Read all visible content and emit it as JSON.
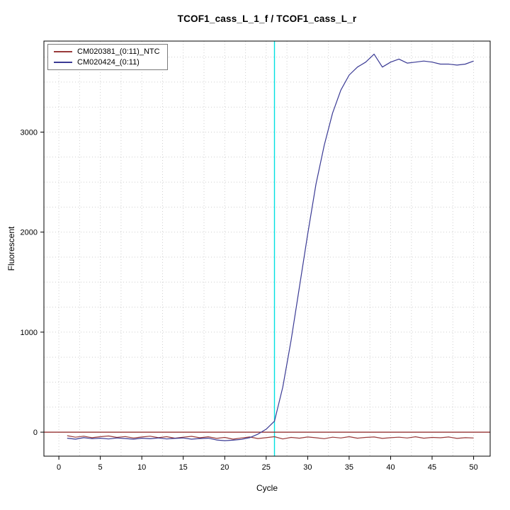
{
  "chart_data": {
    "type": "line",
    "title": "TCOF1_cass_L_1_f / TCOF1_cass_L_r",
    "xlabel": "Cycle",
    "ylabel": "Fluorescent",
    "xlim": [
      -1.8,
      52
    ],
    "ylim": [
      -240,
      3910
    ],
    "xticks": [
      0,
      5,
      10,
      15,
      20,
      25,
      30,
      35,
      40,
      45,
      50
    ],
    "yticks": [
      0,
      1000,
      2000,
      3000
    ],
    "grid": {
      "x_step": 2.5,
      "y_step": 250,
      "color": "#cfcfcf"
    },
    "legend_position": "top-left",
    "background": "#ffffff",
    "x": [
      1,
      2,
      3,
      4,
      5,
      6,
      7,
      8,
      9,
      10,
      11,
      12,
      13,
      14,
      15,
      16,
      17,
      18,
      19,
      20,
      21,
      22,
      23,
      24,
      25,
      26,
      27,
      28,
      29,
      30,
      31,
      32,
      33,
      34,
      35,
      36,
      37,
      38,
      39,
      40,
      41,
      42,
      43,
      44,
      45,
      46,
      47,
      48,
      49,
      50
    ],
    "series": [
      {
        "name": "CM020381_(0:11)_NTC",
        "color": "#993a3a",
        "values": [
          -35,
          -50,
          -40,
          -55,
          -45,
          -38,
          -52,
          -44,
          -58,
          -48,
          -40,
          -55,
          -45,
          -60,
          -50,
          -42,
          -56,
          -46,
          -62,
          -52,
          -70,
          -58,
          -48,
          -64,
          -55,
          -45,
          -68,
          -52,
          -60,
          -48,
          -56,
          -65,
          -50,
          -58,
          -45,
          -60,
          -52,
          -48,
          -62,
          -55,
          -50,
          -58,
          -46,
          -60,
          -52,
          -56,
          -48,
          -62,
          -55,
          -58
        ]
      },
      {
        "name": "CM020424_(0:11)",
        "color": "#3a3a94",
        "values": [
          -60,
          -70,
          -55,
          -65,
          -60,
          -68,
          -58,
          -64,
          -70,
          -60,
          -66,
          -58,
          -68,
          -62,
          -58,
          -70,
          -64,
          -60,
          -78,
          -85,
          -80,
          -72,
          -55,
          -20,
          30,
          110,
          450,
          920,
          1450,
          1980,
          2480,
          2870,
          3190,
          3420,
          3570,
          3650,
          3700,
          3780,
          3650,
          3700,
          3730,
          3690,
          3700,
          3710,
          3700,
          3680,
          3680,
          3670,
          3680,
          3710
        ]
      }
    ],
    "vline": {
      "x": 26,
      "color": "#00e0e0",
      "label": "threshold cycle marker"
    },
    "hline": {
      "y": 0,
      "color": "#8b1f1f",
      "label": "threshold line"
    }
  }
}
